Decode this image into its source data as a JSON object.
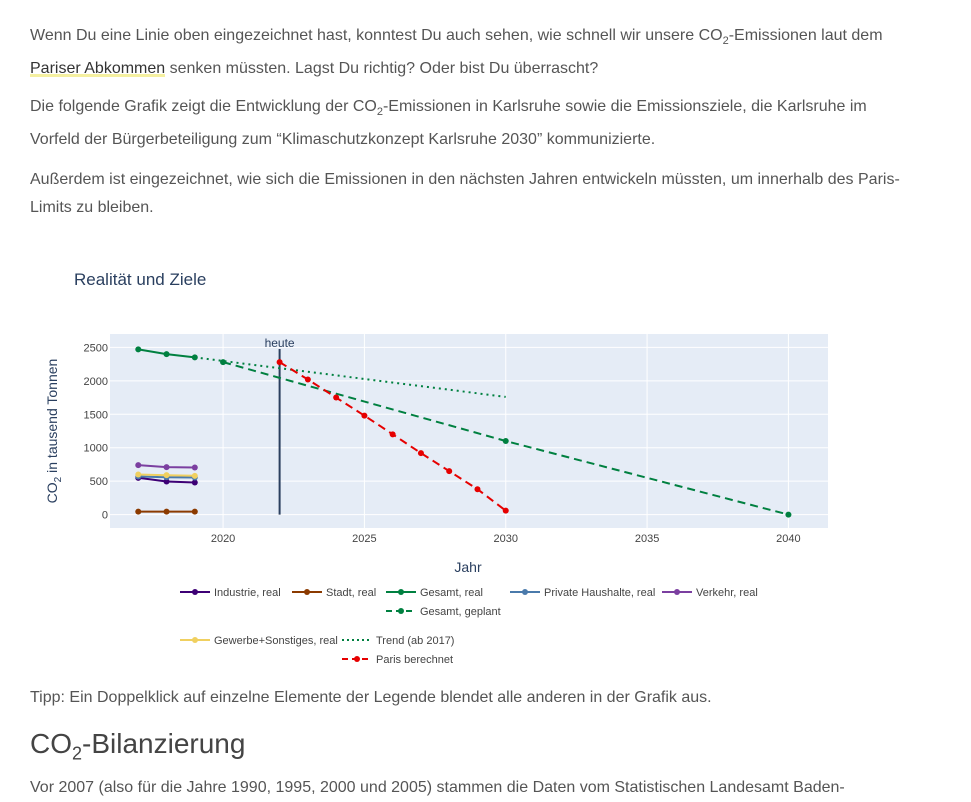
{
  "paragraphs": {
    "p1_before": "Wenn Du eine Linie oben eingezeichnet hast, konntest Du auch sehen, wie schnell wir unsere CO",
    "p1_sub": "2",
    "p1_mid": "-Emissionen laut dem ",
    "p1_link": "Pariser Abkommen",
    "p1_after": " senken müssten. Lagst Du richtig? Oder bist Du überrascht?",
    "p2_before": "Die folgende Grafik zeigt die Entwicklung der CO",
    "p2_sub": "2",
    "p2_after": "-Emissionen in Karlsruhe sowie die Emissionsziele, die Karlsruhe im Vorfeld der Bürgerbeteiligung zum “Klimaschutzkonzept Karlsruhe 2030” kommunizierte.",
    "p3": "Außerdem ist eingezeichnet, wie sich die Emissionen in den nächsten Jahren entwickeln müssten, um innerhalb des Paris-Limits zu bleiben.",
    "tip": "Tipp: Ein Doppelklick auf einzelne Elemente der Legende blendet alle anderen in der Grafik aus.",
    "heading_before": "CO",
    "heading_sub": "2",
    "heading_after": "-Bilanzierung",
    "p4": "Vor 2007 (also für die Jahre 1990, 1995, 2000 und 2005) stammen die Daten vom Statistischen Landesamt Baden-"
  },
  "chart_data": {
    "type": "line",
    "title": "Realität und Ziele",
    "xlabel": "Jahr",
    "ylabel_before": "CO",
    "ylabel_sub": "2",
    "ylabel_after": " in tausend Tonnen",
    "xlim": [
      2016,
      2041.4
    ],
    "ylim": [
      -200,
      2700
    ],
    "x_ticks": [
      2020,
      2025,
      2030,
      2035,
      2040
    ],
    "y_ticks": [
      0,
      500,
      1000,
      1500,
      2000,
      2500
    ],
    "grid": true,
    "annotation": {
      "text": "heute",
      "x": 2022
    },
    "series": [
      {
        "name": "Industrie, real",
        "color": "#3d0075",
        "dash": "solid",
        "markers": true,
        "x": [
          2017,
          2018,
          2019
        ],
        "y": [
          550,
          495,
          480
        ]
      },
      {
        "name": "Stadt, real",
        "color": "#8b3a00",
        "dash": "solid",
        "markers": true,
        "x": [
          2017,
          2018,
          2019
        ],
        "y": [
          45,
          45,
          45
        ]
      },
      {
        "name": "Gesamt, real",
        "color": "#008040",
        "dash": "solid",
        "markers": true,
        "x": [
          2017,
          2018,
          2019
        ],
        "y": [
          2470,
          2400,
          2350
        ]
      },
      {
        "name": "Gesamt, geplant",
        "color": "#008040",
        "dash": "dash",
        "markers": true,
        "x": [
          2020,
          2030,
          2040
        ],
        "y": [
          2280,
          1100,
          0
        ]
      },
      {
        "name": "Private Haushalte, real",
        "color": "#4a7aab",
        "dash": "solid",
        "markers": true,
        "x": [
          2017,
          2018,
          2019
        ],
        "y": [
          570,
          560,
          555
        ]
      },
      {
        "name": "Verkehr, real",
        "color": "#7b3fa0",
        "dash": "solid",
        "markers": true,
        "x": [
          2017,
          2018,
          2019
        ],
        "y": [
          740,
          710,
          705
        ]
      },
      {
        "name": "Gewerbe+Sonstiges, real",
        "color": "#f0d060",
        "dash": "solid",
        "markers": true,
        "x": [
          2017,
          2018,
          2019
        ],
        "y": [
          600,
          590,
          580
        ]
      },
      {
        "name": "Trend (ab 2017)",
        "color": "#008040",
        "dash": "dot",
        "markers": false,
        "x": [
          2019,
          2030
        ],
        "y": [
          2350,
          1760
        ]
      },
      {
        "name": "Paris berechnet",
        "color": "#e60000",
        "dash": "dash",
        "markers": true,
        "x": [
          2022,
          2023,
          2024,
          2025,
          2026,
          2027,
          2028,
          2029,
          2030
        ],
        "y": [
          2280,
          2020,
          1750,
          1480,
          1200,
          920,
          650,
          380,
          60
        ]
      }
    ],
    "legend_placement": "bottom"
  }
}
